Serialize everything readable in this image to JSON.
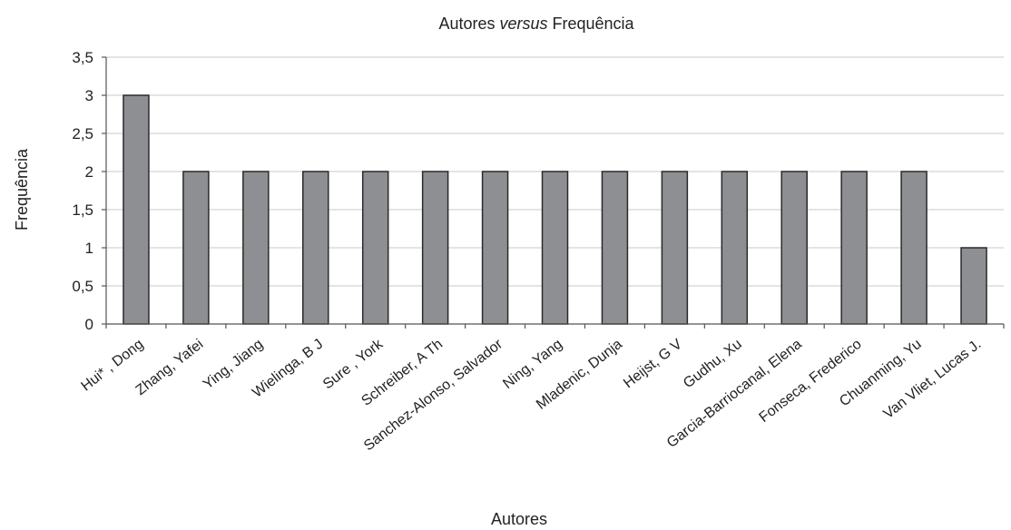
{
  "chart_data": {
    "type": "bar",
    "title_prefix": "Autores ",
    "title_italic": "versus",
    "title_suffix": " Frequência",
    "xlabel": "Autores",
    "ylabel": "Frequência",
    "ylim": [
      0,
      3.5
    ],
    "yticks": [
      "0",
      "0,5",
      "1",
      "1,5",
      "2",
      "2,5",
      "3",
      "3,5"
    ],
    "ytick_values": [
      0,
      0.5,
      1,
      1.5,
      2,
      2.5,
      3,
      3.5
    ],
    "grid": true,
    "bar_color": "#8e8f92",
    "categories": [
      "Hui* , Dong",
      "Zhang, Yafei",
      "Ying, Jiang",
      "Wielinga, B J",
      "Sure , York",
      "Schreiber, A Th",
      "Sanchez-Alonso, Salvador",
      "Ning, Yang",
      "Mladenic, Dunja",
      "Heijst, G V",
      "Gudhu, Xu",
      "Garcia-Barriocanal, Elena",
      "Fonseca, Frederico",
      "Chuanming, Yu",
      "Van Vliet, Lucas J."
    ],
    "values": [
      3,
      2,
      2,
      2,
      2,
      2,
      2,
      2,
      2,
      2,
      2,
      2,
      2,
      2,
      1
    ]
  }
}
